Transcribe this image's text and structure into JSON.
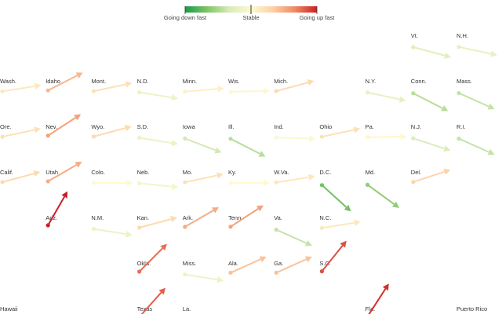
{
  "legend": {
    "left_label": "Going down fast",
    "center_label": "Stable",
    "right_label": "Going up fast",
    "colors": [
      "#1a9a4a",
      "#7fc466",
      "#d7ebb8",
      "#fdfad0",
      "#fcd0a6",
      "#ef8a62",
      "#cc1f24"
    ]
  },
  "chart_data": {
    "type": "arrow-tile-map",
    "title": "",
    "trend_scale": {
      "min": -1,
      "max": 1,
      "low_label": "Going down fast",
      "mid_label": "Stable",
      "high_label": "Going up fast"
    },
    "tiles": [
      {
        "label": "Vt.",
        "col": 9,
        "row": 0,
        "trend": -0.25
      },
      {
        "label": "N.H.",
        "col": 10,
        "row": 0,
        "trend": -0.2
      },
      {
        "label": "Wash.",
        "col": 0,
        "row": 1,
        "trend": 0.15
      },
      {
        "label": "Idaho",
        "col": 1,
        "row": 1,
        "trend": 0.45
      },
      {
        "label": "Mont.",
        "col": 2,
        "row": 1,
        "trend": 0.2
      },
      {
        "label": "N.D.",
        "col": 3,
        "row": 1,
        "trend": -0.15
      },
      {
        "label": "Minn.",
        "col": 4,
        "row": 1,
        "trend": 0.08
      },
      {
        "label": "Wis.",
        "col": 5,
        "row": 1,
        "trend": 0.02
      },
      {
        "label": "Mich.",
        "col": 6,
        "row": 1,
        "trend": 0.25
      },
      {
        "label": "N.Y.",
        "col": 8,
        "row": 1,
        "trend": -0.2
      },
      {
        "label": "Conn.",
        "col": 9,
        "row": 1,
        "trend": -0.45
      },
      {
        "label": "Mass.",
        "col": 10,
        "row": 1,
        "trend": -0.4
      },
      {
        "label": "Ore.",
        "col": 0,
        "row": 2,
        "trend": 0.2
      },
      {
        "label": "Nev.",
        "col": 1,
        "row": 2,
        "trend": 0.55
      },
      {
        "label": "Wyo.",
        "col": 2,
        "row": 2,
        "trend": 0.25
      },
      {
        "label": "S.D.",
        "col": 3,
        "row": 2,
        "trend": -0.15
      },
      {
        "label": "Iowa",
        "col": 4,
        "row": 2,
        "trend": -0.35
      },
      {
        "label": "Ill.",
        "col": 5,
        "row": 2,
        "trend": -0.45
      },
      {
        "label": "Ind.",
        "col": 6,
        "row": 2,
        "trend": -0.03
      },
      {
        "label": "Ohio",
        "col": 7,
        "row": 2,
        "trend": 0.2
      },
      {
        "label": "Pa.",
        "col": 8,
        "row": 2,
        "trend": 0.02
      },
      {
        "label": "N.J.",
        "col": 9,
        "row": 2,
        "trend": -0.3
      },
      {
        "label": "R.I.",
        "col": 10,
        "row": 2,
        "trend": -0.4
      },
      {
        "label": "Calif.",
        "col": 0,
        "row": 3,
        "trend": 0.25
      },
      {
        "label": "Utah",
        "col": 1,
        "row": 3,
        "trend": 0.5
      },
      {
        "label": "Colo.",
        "col": 2,
        "row": 3,
        "trend": 0.0
      },
      {
        "label": "Neb.",
        "col": 3,
        "row": 3,
        "trend": -0.1
      },
      {
        "label": "Mo.",
        "col": 4,
        "row": 3,
        "trend": 0.2
      },
      {
        "label": "Ky.",
        "col": 5,
        "row": 3,
        "trend": 0.0
      },
      {
        "label": "W.Va.",
        "col": 6,
        "row": 3,
        "trend": 0.15
      },
      {
        "label": "D.C.",
        "col": 7,
        "row": 3,
        "trend": -0.7
      },
      {
        "label": "Md.",
        "col": 8,
        "row": 3,
        "trend": -0.6
      },
      {
        "label": "Del.",
        "col": 9,
        "row": 3,
        "trend": 0.3
      },
      {
        "label": "Ariz.",
        "col": 1,
        "row": 4,
        "trend": 1.0
      },
      {
        "label": "N.M.",
        "col": 2,
        "row": 4,
        "trend": -0.15
      },
      {
        "label": "Kan.",
        "col": 3,
        "row": 4,
        "trend": 0.25
      },
      {
        "label": "Ark.",
        "col": 4,
        "row": 4,
        "trend": 0.5
      },
      {
        "label": "Tenn.",
        "col": 5,
        "row": 4,
        "trend": 0.55
      },
      {
        "label": "Va.",
        "col": 6,
        "row": 4,
        "trend": -0.4
      },
      {
        "label": "N.C.",
        "col": 7,
        "row": 4,
        "trend": 0.15
      },
      {
        "label": "Okla.",
        "col": 3,
        "row": 5,
        "trend": 0.75
      },
      {
        "label": "Miss.",
        "col": 4,
        "row": 5,
        "trend": -0.15
      },
      {
        "label": "Ala.",
        "col": 5,
        "row": 5,
        "trend": 0.4
      },
      {
        "label": "Ga.",
        "col": 6,
        "row": 5,
        "trend": 0.4
      },
      {
        "label": "S.C.",
        "col": 7,
        "row": 5,
        "trend": 0.85
      },
      {
        "label": "Hawaii",
        "col": 0,
        "row": 6,
        "trend": null
      },
      {
        "label": "Texas",
        "col": 3,
        "row": 6,
        "trend": 0.8
      },
      {
        "label": "La.",
        "col": 4,
        "row": 6,
        "trend": null
      },
      {
        "label": "Fla.",
        "col": 8,
        "row": 6,
        "trend": 0.95
      },
      {
        "label": "Puerto Rico",
        "col": 10,
        "row": 6,
        "trend": null
      }
    ]
  }
}
